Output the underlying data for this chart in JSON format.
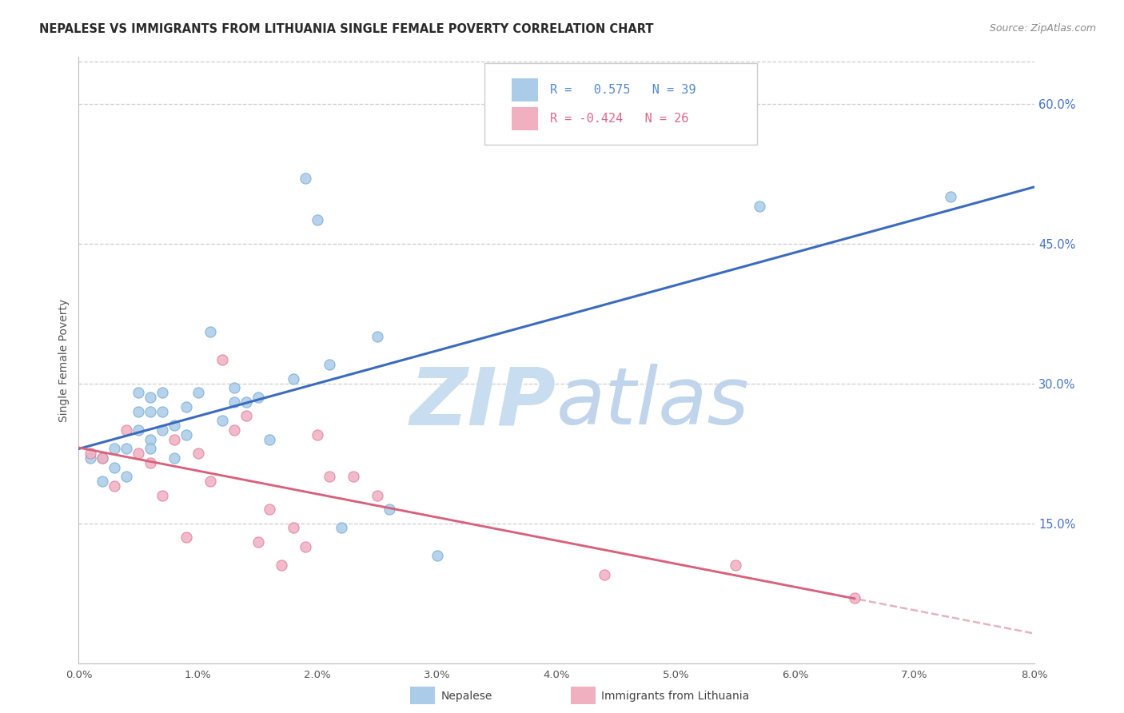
{
  "title": "NEPALESE VS IMMIGRANTS FROM LITHUANIA SINGLE FEMALE POVERTY CORRELATION CHART",
  "source": "Source: ZipAtlas.com",
  "ylabel": "Single Female Poverty",
  "ylabel_right_ticks": [
    "60.0%",
    "45.0%",
    "30.0%",
    "15.0%"
  ],
  "ylabel_right_values": [
    0.6,
    0.45,
    0.3,
    0.15
  ],
  "xlim": [
    0.0,
    0.08
  ],
  "ylim": [
    0.0,
    0.65
  ],
  "series1_name": "Nepalese",
  "series2_name": "Immigrants from Lithuania",
  "nepalese_x": [
    0.001,
    0.002,
    0.002,
    0.003,
    0.003,
    0.004,
    0.004,
    0.005,
    0.005,
    0.005,
    0.006,
    0.006,
    0.006,
    0.006,
    0.007,
    0.007,
    0.007,
    0.008,
    0.008,
    0.009,
    0.009,
    0.01,
    0.011,
    0.012,
    0.013,
    0.013,
    0.014,
    0.015,
    0.016,
    0.018,
    0.019,
    0.02,
    0.021,
    0.022,
    0.025,
    0.026,
    0.03,
    0.057,
    0.073
  ],
  "nepalese_y": [
    0.22,
    0.22,
    0.195,
    0.23,
    0.21,
    0.2,
    0.23,
    0.27,
    0.25,
    0.29,
    0.24,
    0.27,
    0.285,
    0.23,
    0.25,
    0.27,
    0.29,
    0.22,
    0.255,
    0.245,
    0.275,
    0.29,
    0.355,
    0.26,
    0.28,
    0.295,
    0.28,
    0.285,
    0.24,
    0.305,
    0.52,
    0.475,
    0.32,
    0.145,
    0.35,
    0.165,
    0.115,
    0.49,
    0.5
  ],
  "lithuania_x": [
    0.001,
    0.002,
    0.003,
    0.004,
    0.005,
    0.006,
    0.007,
    0.008,
    0.009,
    0.01,
    0.011,
    0.012,
    0.013,
    0.014,
    0.015,
    0.016,
    0.017,
    0.018,
    0.019,
    0.02,
    0.021,
    0.023,
    0.025,
    0.044,
    0.055,
    0.065
  ],
  "lithuania_y": [
    0.225,
    0.22,
    0.19,
    0.25,
    0.225,
    0.215,
    0.18,
    0.24,
    0.135,
    0.225,
    0.195,
    0.325,
    0.25,
    0.265,
    0.13,
    0.165,
    0.105,
    0.145,
    0.125,
    0.245,
    0.2,
    0.2,
    0.18,
    0.095,
    0.105,
    0.07
  ],
  "background_color": "#ffffff",
  "grid_color": "#c8c8c8",
  "blue_line_color": "#3a6bbf",
  "pink_line_color": "#d9607a",
  "pink_dash_color": "#e0a0b0",
  "blue_marker_facecolor": "#aacce8",
  "blue_marker_edgecolor": "#7aadd4",
  "pink_marker_facecolor": "#f0b0c0",
  "pink_marker_edgecolor": "#e080a0",
  "marker_size": 90,
  "legend_blue_color": "#5588cc",
  "legend_pink_color": "#dd6688",
  "watermark_zip_color": "#c8ddf0",
  "watermark_atlas_color": "#c0d4ec"
}
